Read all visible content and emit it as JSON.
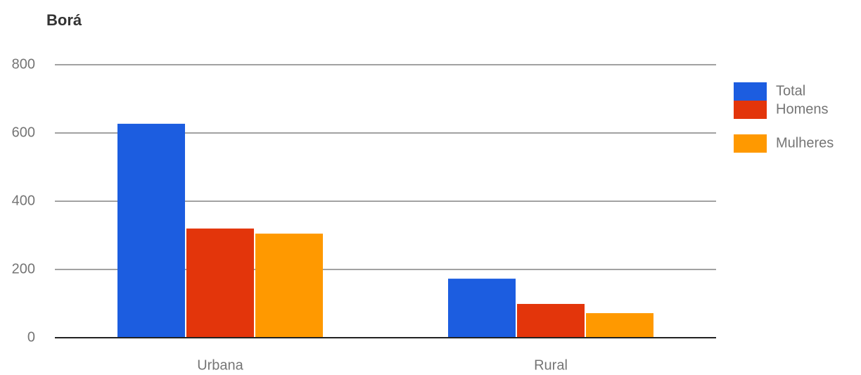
{
  "chart_data": {
    "type": "bar",
    "title": "Borá",
    "categories": [
      "Urbana",
      "Rural"
    ],
    "series": [
      {
        "name": "Total",
        "color": "#1c5de0",
        "values": [
          627,
          173
        ]
      },
      {
        "name": "Homens",
        "color": "#e3350b",
        "values": [
          320,
          99
        ]
      },
      {
        "name": "Mulheres",
        "color": "#ff9900",
        "values": [
          305,
          72
        ]
      }
    ],
    "ylim": [
      0,
      800
    ],
    "yticks": [
      0,
      200,
      400,
      600,
      800
    ],
    "grid": true,
    "legend": "right"
  }
}
